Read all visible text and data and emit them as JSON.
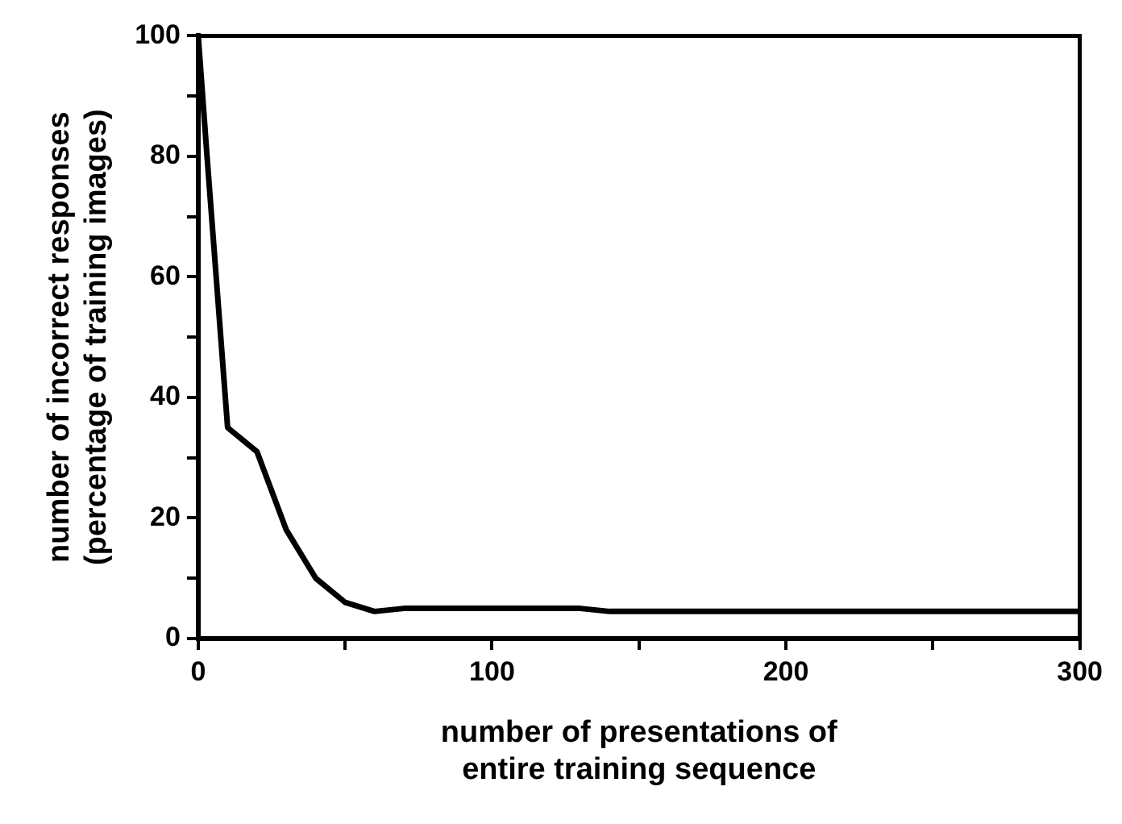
{
  "chart_data": {
    "type": "line",
    "xlabel": "number of presentations of\nentire training sequence",
    "ylabel": "number of incorrect responses\n(percentage of training images)",
    "x": [
      0,
      3,
      10,
      20,
      30,
      40,
      50,
      60,
      70,
      100,
      130,
      140,
      300
    ],
    "series": [
      {
        "color": "#000000",
        "values": [
          100,
          80,
          35,
          31,
          18,
          10,
          6,
          4.5,
          5,
          5,
          5,
          4.5,
          4.5
        ]
      }
    ],
    "xlim": [
      0,
      300
    ],
    "xticks": [
      0,
      {
        "value": 50,
        "label": null
      },
      100,
      {
        "value": 150,
        "label": null
      },
      200,
      {
        "value": 250,
        "label": null
      },
      300
    ],
    "ylim": [
      0,
      100
    ],
    "yticks": [
      0,
      {
        "value": 10,
        "label": null
      },
      20,
      {
        "value": 30,
        "label": null
      },
      40,
      {
        "value": 50,
        "label": null
      },
      60,
      {
        "value": 70,
        "label": null
      },
      80,
      {
        "value": 90,
        "label": null
      },
      100
    ],
    "grid": false,
    "legend": false,
    "marker": "none",
    "line_style": "solid"
  }
}
